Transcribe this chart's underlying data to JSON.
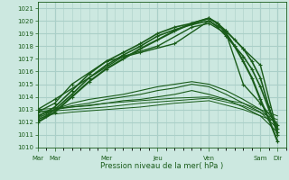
{
  "xlabel": "Pression niveau de la mer( hPa )",
  "ylim": [
    1010.0,
    1021.5
  ],
  "yticks": [
    1010,
    1011,
    1012,
    1013,
    1014,
    1015,
    1016,
    1017,
    1018,
    1019,
    1020,
    1021
  ],
  "day_labels": [
    "Mar",
    "Mar",
    "Mer",
    "Jeu",
    "Ven",
    "Sam",
    "Dir"
  ],
  "day_positions": [
    0,
    8,
    32,
    56,
    80,
    104,
    112
  ],
  "xlim": [
    0,
    116
  ],
  "bg_color": "#cce8e0",
  "grid_color": "#aacfc8",
  "line_color": "#1a5c1a",
  "lines": [
    {
      "x": [
        0,
        4,
        8,
        16,
        24,
        32,
        40,
        48,
        56,
        64,
        72,
        80,
        84,
        88,
        92,
        96,
        100,
        104,
        108,
        112
      ],
      "y": [
        1012.5,
        1012.8,
        1013.2,
        1014.5,
        1015.8,
        1016.8,
        1017.5,
        1018.2,
        1019.0,
        1019.5,
        1019.8,
        1020.2,
        1019.8,
        1019.2,
        1018.5,
        1017.8,
        1016.8,
        1015.5,
        1013.2,
        1011.0
      ],
      "marker": "+",
      "lw": 1.2,
      "ms": 3.0
    },
    {
      "x": [
        0,
        4,
        8,
        16,
        24,
        32,
        40,
        48,
        56,
        64,
        72,
        80,
        84,
        88,
        92,
        96,
        100,
        104,
        108,
        112
      ],
      "y": [
        1012.2,
        1012.5,
        1013.0,
        1014.2,
        1015.5,
        1016.5,
        1017.3,
        1018.0,
        1018.8,
        1019.3,
        1019.7,
        1020.0,
        1019.5,
        1018.8,
        1018.0,
        1017.2,
        1016.2,
        1014.8,
        1013.0,
        1011.5
      ],
      "marker": "+",
      "lw": 1.2,
      "ms": 3.0
    },
    {
      "x": [
        0,
        8,
        16,
        24,
        32,
        40,
        48,
        56,
        64,
        72,
        80,
        84,
        88,
        92,
        96,
        100,
        104,
        108,
        112
      ],
      "y": [
        1012.0,
        1012.8,
        1014.0,
        1015.2,
        1016.2,
        1017.0,
        1017.8,
        1018.5,
        1019.2,
        1019.8,
        1020.2,
        1019.8,
        1019.0,
        1018.0,
        1016.8,
        1015.5,
        1013.8,
        1012.2,
        1010.5
      ],
      "marker": "+",
      "lw": 1.5,
      "ms": 3.0
    },
    {
      "x": [
        0,
        8,
        16,
        32,
        48,
        64,
        80,
        88,
        96,
        104,
        112
      ],
      "y": [
        1012.8,
        1013.5,
        1015.0,
        1016.8,
        1017.5,
        1018.2,
        1020.0,
        1019.2,
        1017.8,
        1016.5,
        1011.2
      ],
      "marker": "+",
      "lw": 1.0,
      "ms": 2.5
    },
    {
      "x": [
        0,
        8,
        24,
        40,
        56,
        72,
        80,
        88,
        96,
        104,
        112
      ],
      "y": [
        1013.0,
        1013.8,
        1015.5,
        1017.2,
        1018.0,
        1019.5,
        1019.8,
        1019.0,
        1015.0,
        1013.5,
        1011.8
      ],
      "marker": "+",
      "lw": 1.0,
      "ms": 2.5
    },
    {
      "x": [
        0,
        8,
        16,
        24,
        32,
        40,
        48,
        56,
        64,
        72,
        80,
        88,
        96,
        104,
        112
      ],
      "y": [
        1012.3,
        1013.0,
        1013.5,
        1013.8,
        1014.0,
        1014.2,
        1014.5,
        1014.8,
        1015.0,
        1015.2,
        1015.0,
        1014.5,
        1013.8,
        1013.0,
        1011.8
      ],
      "marker": null,
      "lw": 0.8,
      "ms": 0
    },
    {
      "x": [
        0,
        8,
        16,
        24,
        32,
        40,
        48,
        56,
        64,
        72,
        80,
        88,
        96,
        104,
        112
      ],
      "y": [
        1012.5,
        1013.0,
        1013.3,
        1013.5,
        1013.8,
        1014.0,
        1014.2,
        1014.5,
        1014.7,
        1015.0,
        1014.8,
        1014.2,
        1013.5,
        1012.8,
        1011.5
      ],
      "marker": null,
      "lw": 0.8,
      "ms": 0
    },
    {
      "x": [
        0,
        8,
        16,
        24,
        32,
        40,
        48,
        56,
        64,
        72,
        80,
        88,
        96,
        104,
        112
      ],
      "y": [
        1012.8,
        1013.0,
        1013.2,
        1013.3,
        1013.5,
        1013.7,
        1013.8,
        1014.0,
        1014.2,
        1014.5,
        1014.2,
        1013.8,
        1013.2,
        1012.5,
        1011.2
      ],
      "marker": null,
      "lw": 0.8,
      "ms": 0
    },
    {
      "x": [
        0,
        16,
        32,
        48,
        64,
        80,
        96,
        112
      ],
      "y": [
        1013.0,
        1013.2,
        1013.5,
        1013.7,
        1013.9,
        1014.0,
        1013.5,
        1012.5
      ],
      "marker": null,
      "lw": 0.7,
      "ms": 0
    },
    {
      "x": [
        0,
        16,
        32,
        48,
        64,
        80,
        96,
        112
      ],
      "y": [
        1012.8,
        1013.0,
        1013.2,
        1013.5,
        1013.7,
        1013.9,
        1013.3,
        1012.2
      ],
      "marker": null,
      "lw": 0.7,
      "ms": 0
    },
    {
      "x": [
        0,
        16,
        32,
        48,
        64,
        80,
        96,
        112
      ],
      "y": [
        1012.5,
        1012.8,
        1013.0,
        1013.2,
        1013.5,
        1013.7,
        1013.0,
        1012.0
      ],
      "marker": null,
      "lw": 0.7,
      "ms": 0
    }
  ]
}
